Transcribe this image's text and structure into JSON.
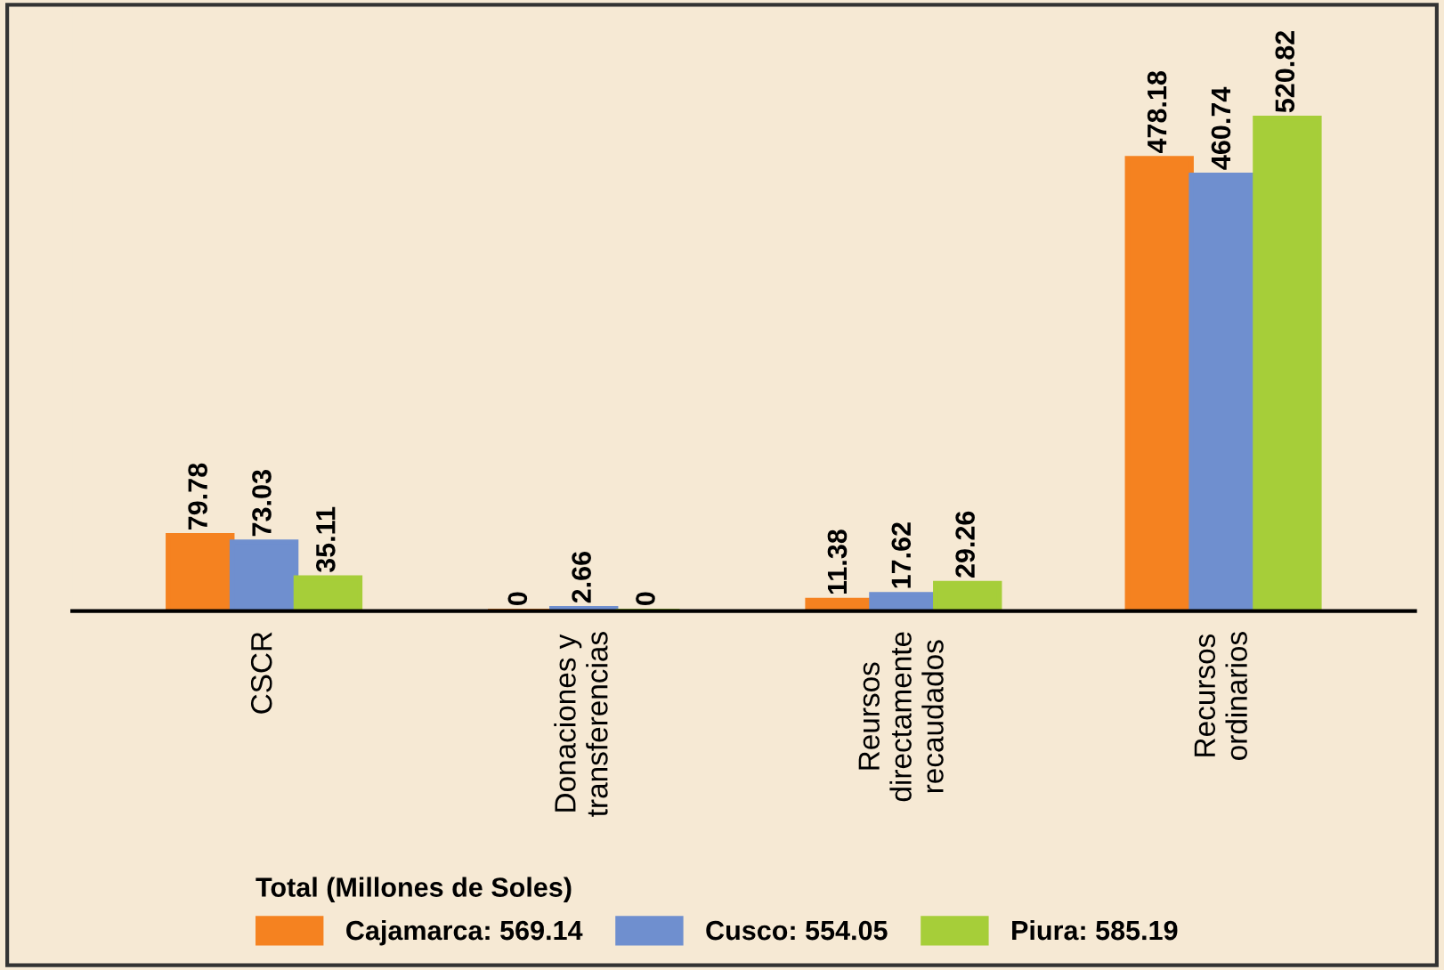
{
  "chart_data": {
    "type": "bar",
    "categories": [
      "CSCR",
      "Donaciones y\ntransferencias",
      "Reursos\ndirectamente\nrecaudados",
      "Recursos\nordinarios"
    ],
    "series": [
      {
        "name": "Cajamarca: 569.14",
        "color": "#f58220",
        "values": [
          79.78,
          0,
          11.38,
          478.18
        ]
      },
      {
        "name": "Cusco: 554.05",
        "color": "#6f8fcf",
        "values": [
          73.03,
          2.66,
          17.62,
          460.74
        ]
      },
      {
        "name": "Piura: 585.19",
        "color": "#a6ce39",
        "values": [
          35.11,
          0,
          29.26,
          520.82
        ]
      }
    ],
    "legend_title": "Total (Millones de Soles)",
    "legend": "bottom",
    "data_labels": true,
    "grid": false
  }
}
